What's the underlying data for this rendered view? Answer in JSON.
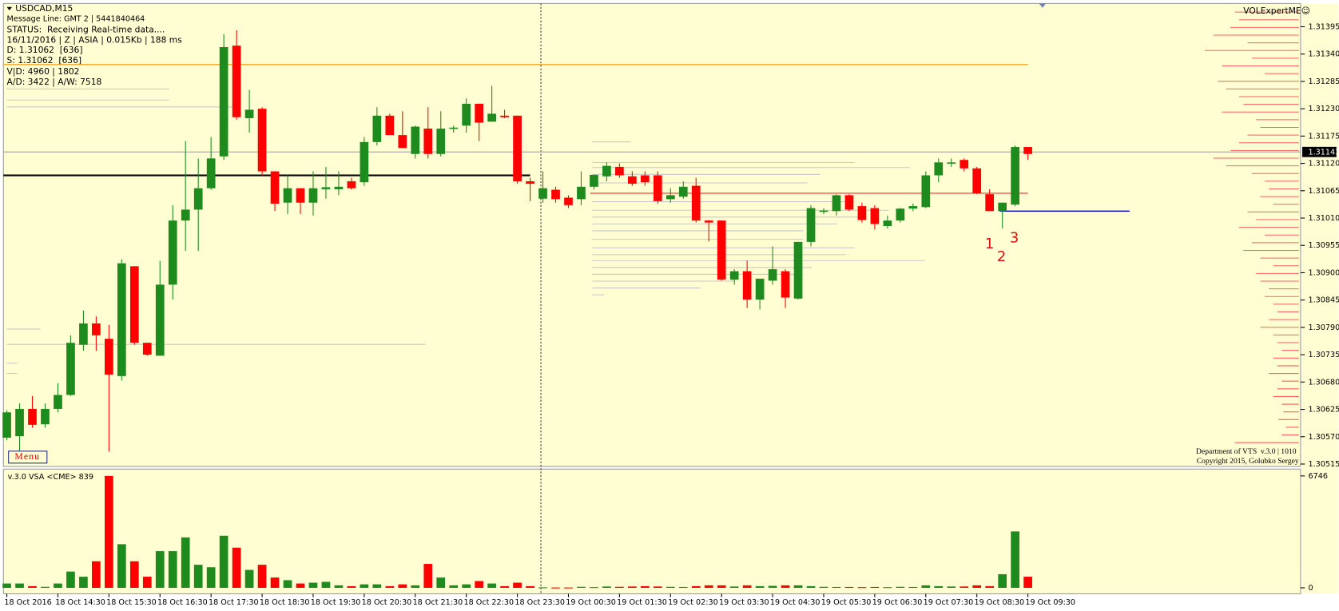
{
  "overlay": {
    "symbol": "USDCAD,M15",
    "lines": [
      "Message Line: GMT 2 | 5441840464",
      "STATUS:  Receiving Real-time data....",
      "16/11/2016 | Z | ASIA | 0.015Kb | 188 ms",
      "D: 1.31062  [636]",
      "S: 1.31062  [636]",
      "V|D: 4960 | 1802",
      "A/D: 3422 | A/W: 7518"
    ],
    "indicator": "VOLExpertME☺",
    "menu": "Menu",
    "footer": [
      "Department of VTS  v.3.0 | 1010",
      "Copyright 2015, Golubko Sergey"
    ]
  },
  "chart_data": [
    {
      "type": "candlestick",
      "up_color": "#1e8b1e",
      "down_color": "#ff0000",
      "categories": [
        "18 Oct 2016",
        null,
        null,
        null,
        "18 Oct 14:30",
        null,
        null,
        null,
        "18 Oct 15:30",
        null,
        null,
        null,
        "18 Oct 16:30",
        null,
        null,
        null,
        "18 Oct 17:30",
        null,
        null,
        null,
        "18 Oct 18:30",
        null,
        null,
        null,
        "18 Oct 19:30",
        null,
        null,
        null,
        "18 Oct 20:30",
        null,
        null,
        null,
        "18 Oct 21:30",
        null,
        null,
        null,
        "18 Oct 22:30",
        null,
        null,
        null,
        "18 Oct 23:30",
        null,
        null,
        null,
        "19 Oct 00:30",
        null,
        null,
        null,
        "19 Oct 01:30",
        null,
        null,
        null,
        "19 Oct 02:30",
        null,
        null,
        null,
        "19 Oct 03:30",
        null,
        null,
        null,
        "19 Oct 04:30",
        null,
        null,
        null,
        "19 Oct 05:30",
        null,
        null,
        null,
        "19 Oct 06:30",
        null,
        null,
        null,
        "19 Oct 07:30",
        null,
        null,
        null,
        "19 Oct 08:30",
        null,
        null,
        null,
        "19 Oct 09:30"
      ],
      "open": [
        1.30568,
        1.30571,
        1.30626,
        1.30595,
        1.30626,
        1.30654,
        1.30755,
        1.30798,
        1.30767,
        1.30692,
        1.30913,
        1.30759,
        1.30733,
        1.30876,
        1.31005,
        1.31027,
        1.3107,
        1.31134,
        1.31357,
        1.31211,
        1.3123,
        1.31104,
        1.31041,
        1.3107,
        1.31041,
        1.31068,
        1.31068,
        1.31084,
        1.31082,
        1.31163,
        1.31216,
        1.31177,
        1.31139,
        1.3119,
        1.31139,
        1.3119,
        1.31196,
        1.3124,
        1.31204,
        1.31216,
        1.31216,
        1.31084,
        1.31049,
        1.31067,
        1.31051,
        1.31048,
        1.31073,
        1.31094,
        1.31113,
        1.31094,
        1.31096,
        1.31096,
        1.31048,
        1.31053,
        1.31075,
        1.31005,
        1.31005,
        1.30886,
        1.30903,
        1.30846,
        1.30884,
        1.30903,
        1.30848,
        1.30962,
        1.31024,
        1.31024,
        1.31056,
        1.31034,
        1.3103,
        1.30994,
        1.31005,
        1.31029,
        1.31032,
        1.31096,
        1.3112,
        1.31127,
        1.3111,
        1.31058,
        1.31024,
        1.31037,
        1.31153
      ],
      "high": [
        1.30623,
        1.30637,
        1.30652,
        1.30637,
        1.30678,
        1.30774,
        1.30824,
        1.30812,
        1.30795,
        1.30927,
        1.30913,
        1.30759,
        1.30924,
        1.31036,
        1.31165,
        1.3113,
        1.31173,
        1.3138,
        1.31388,
        1.31268,
        1.31233,
        1.31104,
        1.31096,
        1.3107,
        1.31104,
        1.31113,
        1.31104,
        1.31091,
        1.31173,
        1.31233,
        1.3122,
        1.31225,
        1.31196,
        1.31233,
        1.31225,
        1.31196,
        1.31251,
        1.3124,
        1.31276,
        1.31228,
        1.31216,
        1.31091,
        1.31104,
        1.31073,
        1.31056,
        1.31104,
        1.31097,
        1.31122,
        1.3112,
        1.31104,
        1.31104,
        1.31104,
        1.3107,
        1.31084,
        1.31091,
        1.31006,
        1.31005,
        1.30907,
        1.30924,
        1.30888,
        1.30953,
        1.30907,
        1.30962,
        1.31036,
        1.3103,
        1.31058,
        1.31058,
        1.31041,
        1.31036,
        1.31015,
        1.3103,
        1.31039,
        1.31104,
        1.3113,
        1.3113,
        1.3113,
        1.31113,
        1.31068,
        1.31041,
        1.31156,
        1.31153
      ],
      "low": [
        1.30563,
        1.30542,
        1.30588,
        1.30588,
        1.30619,
        1.30652,
        1.30743,
        1.30743,
        1.3054,
        1.30683,
        1.30755,
        1.30733,
        1.30733,
        1.30846,
        1.30944,
        1.30944,
        1.31067,
        1.31127,
        1.31208,
        1.31182,
        1.31096,
        1.31024,
        1.31018,
        1.31018,
        1.31015,
        1.31049,
        1.31056,
        1.31067,
        1.31075,
        1.31156,
        1.31177,
        1.31151,
        1.3113,
        1.3113,
        1.31134,
        1.31182,
        1.31182,
        1.31165,
        1.31204,
        1.31211,
        1.31079,
        1.31044,
        1.31041,
        1.31041,
        1.3103,
        1.31036,
        1.31067,
        1.31084,
        1.31091,
        1.31075,
        1.31075,
        1.31039,
        1.31041,
        1.31049,
        1.31001,
        1.30963,
        1.30884,
        1.30876,
        1.30829,
        1.30826,
        1.30876,
        1.30829,
        1.30846,
        1.30953,
        1.31018,
        1.31015,
        1.31024,
        1.31001,
        1.30987,
        1.30989,
        1.31001,
        1.31024,
        1.3103,
        1.31082,
        1.31113,
        1.31104,
        1.31058,
        1.31024,
        1.30989,
        1.31034,
        1.31127
      ],
      "close": [
        1.30619,
        1.30626,
        1.30594,
        1.30626,
        1.30654,
        1.30759,
        1.30798,
        1.30774,
        1.30695,
        1.30919,
        1.30759,
        1.30735,
        1.30876,
        1.31005,
        1.31027,
        1.3107,
        1.3113,
        1.31354,
        1.31213,
        1.31228,
        1.31104,
        1.31039,
        1.3107,
        1.31041,
        1.3107,
        1.31072,
        1.31073,
        1.3107,
        1.31163,
        1.31216,
        1.31177,
        1.31151,
        1.31194,
        1.31139,
        1.3119,
        1.31192,
        1.3124,
        1.31202,
        1.3122,
        1.31213,
        1.31084,
        1.31079,
        1.3107,
        1.31048,
        1.31036,
        1.31073,
        1.31097,
        1.31115,
        1.31096,
        1.31079,
        1.31082,
        1.31044,
        1.31056,
        1.31073,
        1.31005,
        1.31001,
        1.30886,
        1.30903,
        1.30846,
        1.30888,
        1.30907,
        1.3085,
        1.30962,
        1.3103,
        1.31025,
        1.31056,
        1.31027,
        1.31006,
        1.30998,
        1.31005,
        1.31029,
        1.31034,
        1.31096,
        1.31122,
        1.31122,
        1.3111,
        1.3106,
        1.31024,
        1.31041,
        1.31153,
        1.31139
      ],
      "ylim": [
        1.3051,
        1.3144
      ],
      "yticks": [
        1.31395,
        {
          "value": 1.3134,
          "label": "1.31340"
        },
        1.31285,
        {
          "value": 1.3123,
          "label": "1.31230"
        },
        1.31175,
        {
          "value": 1.3112,
          "label": "1.31120"
        },
        1.31065,
        {
          "value": 1.3101,
          "label": "1.31010"
        },
        1.30955,
        {
          "value": 1.309,
          "label": "1.30900"
        },
        1.30845,
        {
          "value": 1.3079,
          "label": "1.30790"
        },
        1.30735,
        {
          "value": 1.3068,
          "label": "1.30680"
        },
        1.30625,
        {
          "value": 1.3057,
          "label": "1.30570"
        },
        1.30515
      ],
      "last_price": 1.31143,
      "levels": [
        {
          "value": 1.31319,
          "color": "#f5a623"
        },
        {
          "value": 1.31096,
          "color": "#000000"
        },
        {
          "value": 1.3106,
          "color": "#ff5050"
        },
        {
          "value": 1.31024,
          "color": "#0000cc"
        }
      ],
      "annotations": [
        "1",
        "2",
        "3"
      ]
    },
    {
      "type": "bar",
      "title": "v.3.0 VSA <CME> 839",
      "values": [
        260,
        260,
        100,
        60,
        260,
        980,
        670,
        1600,
        6746,
        2630,
        1600,
        670,
        2210,
        2210,
        3040,
        1390,
        1240,
        3140,
        2420,
        1080,
        1390,
        620,
        460,
        260,
        310,
        360,
        150,
        100,
        210,
        210,
        100,
        210,
        150,
        1440,
        620,
        150,
        210,
        410,
        260,
        100,
        310,
        100,
        30,
        20,
        20,
        60,
        40,
        80,
        60,
        80,
        100,
        80,
        60,
        50,
        100,
        150,
        150,
        80,
        150,
        100,
        120,
        150,
        150,
        100,
        60,
        50,
        50,
        40,
        50,
        40,
        60,
        50,
        150,
        100,
        80,
        80,
        150,
        100,
        820,
        3400,
        670
      ],
      "ylim": [
        0,
        6746
      ],
      "yticks": [
        0,
        6746
      ]
    }
  ]
}
